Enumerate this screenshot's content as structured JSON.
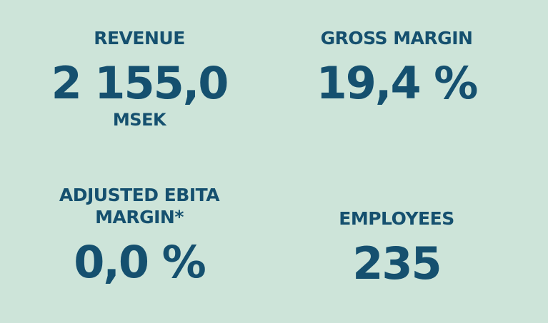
{
  "kpis": {
    "revenue": {
      "label": "REVENUE",
      "value": "2 155,0",
      "unit": "MSEK"
    },
    "gross_margin": {
      "label": "GROSS MARGIN",
      "value": "19,4 %"
    },
    "adjusted_ebita_margin": {
      "label_line1": "ADJUSTED EBITA",
      "label_line2": "MARGIN*",
      "value": "0,0 %"
    },
    "employees": {
      "label": "EMPLOYEES",
      "value": "235"
    }
  },
  "colors": {
    "background": "#cde4d9",
    "text": "#15506f"
  }
}
